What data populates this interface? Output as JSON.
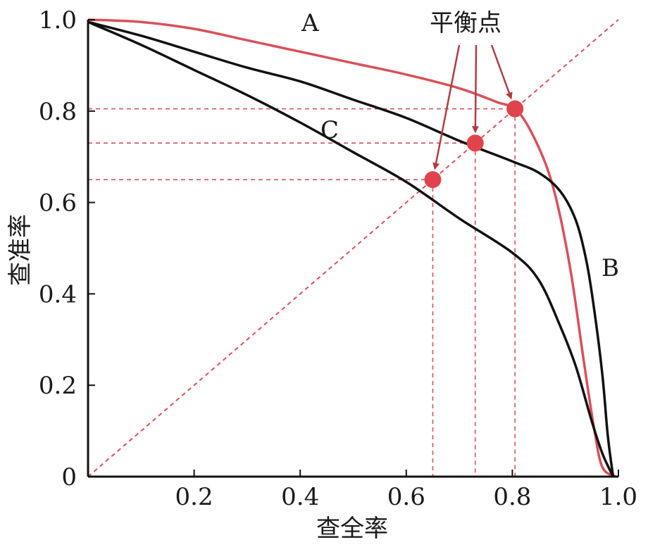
{
  "chart_data": {
    "type": "line",
    "xlabel": "查全率",
    "ylabel": "查准率",
    "xlim": [
      0,
      1.0
    ],
    "ylim": [
      0,
      1.0
    ],
    "x_ticks": [
      {
        "value": 0.2,
        "label": "0.2"
      },
      {
        "value": 0.4,
        "label": "0.4"
      },
      {
        "value": 0.6,
        "label": "0.6"
      },
      {
        "value": 0.8,
        "label": "0.8"
      },
      {
        "value": 1.0,
        "label": "1.0"
      }
    ],
    "y_ticks": [
      {
        "value": 0,
        "label": "0"
      },
      {
        "value": 0.2,
        "label": "0.2"
      },
      {
        "value": 0.4,
        "label": "0.4"
      },
      {
        "value": 0.6,
        "label": "0.6"
      },
      {
        "value": 0.8,
        "label": "0.8"
      },
      {
        "value": 1.0,
        "label": "1.0"
      }
    ],
    "grid": false,
    "colors": {
      "A": "#d9505a",
      "B": "#111111",
      "C": "#111111",
      "guide": "#d9505a",
      "point": "#e0434b",
      "arrow": "#b23a44"
    },
    "series": [
      {
        "name": "A",
        "points": [
          [
            0,
            1.0
          ],
          [
            0.1,
            0.995
          ],
          [
            0.2,
            0.98
          ],
          [
            0.3,
            0.955
          ],
          [
            0.4,
            0.93
          ],
          [
            0.5,
            0.905
          ],
          [
            0.6,
            0.88
          ],
          [
            0.7,
            0.85
          ],
          [
            0.77,
            0.82
          ],
          [
            0.81,
            0.8
          ],
          [
            0.85,
            0.72
          ],
          [
            0.88,
            0.62
          ],
          [
            0.91,
            0.45
          ],
          [
            0.935,
            0.25
          ],
          [
            0.955,
            0.1
          ],
          [
            0.97,
            0.02
          ],
          [
            0.995,
            0.0
          ]
        ]
      },
      {
        "name": "B",
        "points": [
          [
            0,
            0.995
          ],
          [
            0.1,
            0.965
          ],
          [
            0.2,
            0.93
          ],
          [
            0.3,
            0.895
          ],
          [
            0.4,
            0.865
          ],
          [
            0.5,
            0.825
          ],
          [
            0.6,
            0.785
          ],
          [
            0.7,
            0.735
          ],
          [
            0.8,
            0.69
          ],
          [
            0.85,
            0.665
          ],
          [
            0.89,
            0.625
          ],
          [
            0.92,
            0.56
          ],
          [
            0.94,
            0.47
          ],
          [
            0.955,
            0.36
          ],
          [
            0.97,
            0.22
          ],
          [
            0.98,
            0.09
          ],
          [
            0.99,
            0.0
          ]
        ]
      },
      {
        "name": "C",
        "points": [
          [
            0,
            0.995
          ],
          [
            0.1,
            0.945
          ],
          [
            0.2,
            0.89
          ],
          [
            0.3,
            0.835
          ],
          [
            0.4,
            0.775
          ],
          [
            0.5,
            0.71
          ],
          [
            0.6,
            0.645
          ],
          [
            0.7,
            0.565
          ],
          [
            0.8,
            0.49
          ],
          [
            0.85,
            0.43
          ],
          [
            0.89,
            0.33
          ],
          [
            0.92,
            0.24
          ],
          [
            0.95,
            0.12
          ],
          [
            0.97,
            0.05
          ],
          [
            0.99,
            0.0
          ]
        ]
      }
    ],
    "diagonal": [
      [
        0,
        0
      ],
      [
        1.0,
        1.0
      ]
    ],
    "break_even_points": [
      {
        "curve": "C",
        "x": 0.65,
        "y": 0.65
      },
      {
        "curve": "B",
        "x": 0.73,
        "y": 0.73
      },
      {
        "curve": "A",
        "x": 0.805,
        "y": 0.805
      }
    ],
    "annotation": "平衡点",
    "curve_labels": {
      "A": "A",
      "B": "B",
      "C": "C"
    }
  }
}
